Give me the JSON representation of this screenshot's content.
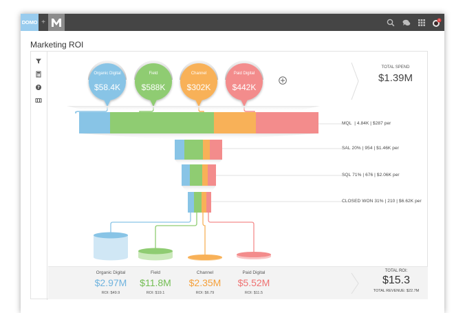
{
  "topbar": {
    "domo_logo": "DOMO",
    "plus": "+",
    "icons": [
      "search-icon",
      "chat-icon",
      "apps-grid-icon",
      "avatar-icon"
    ],
    "notification_badge": "1"
  },
  "page": {
    "title": "Marketing ROI"
  },
  "toolstrip": {
    "icons": [
      "filter-icon",
      "calculator-icon",
      "help-icon",
      "data-icon"
    ]
  },
  "colors": {
    "organic": "#88c4e6",
    "field": "#8fcc72",
    "channel": "#f8b158",
    "paid": "#f38c8c",
    "topbar": "#454545"
  },
  "channels": [
    {
      "name": "Organic Digital",
      "spend": "$58.4K",
      "revenue": "$2.97M",
      "roi": "ROI: $49.9",
      "color": "#88c4e6"
    },
    {
      "name": "Field",
      "spend": "$588K",
      "revenue": "$11.8M",
      "roi": "ROI: $19.1",
      "color": "#8fcc72"
    },
    {
      "name": "Channel",
      "spend": "$302K",
      "revenue": "$2.35M",
      "roi": "ROI: $6.79",
      "color": "#f8b158"
    },
    {
      "name": "Paid Digital",
      "spend": "$442K",
      "revenue": "$5.52M",
      "roi": "ROI: $11.5",
      "color": "#f38c8c"
    }
  ],
  "total_spend": {
    "label": "TOTAL SPEND",
    "value": "$1.39M"
  },
  "stages": [
    {
      "name": "MQL",
      "detail": "| 4.84K | $287 per"
    },
    {
      "name": "SAL",
      "detail": "20% | 954 | $1.46K per"
    },
    {
      "name": "SQL",
      "detail": "71% | 676 | $2.06K per"
    },
    {
      "name": "CLOSED WON",
      "detail": "31% | 210 | $6.62K per"
    }
  ],
  "total_roi": {
    "label": "TOTAL ROI:",
    "value": "$15.3",
    "revenue": "TOTAL REVENUE: $22.7M"
  },
  "add_icon": "plus-circle-icon"
}
